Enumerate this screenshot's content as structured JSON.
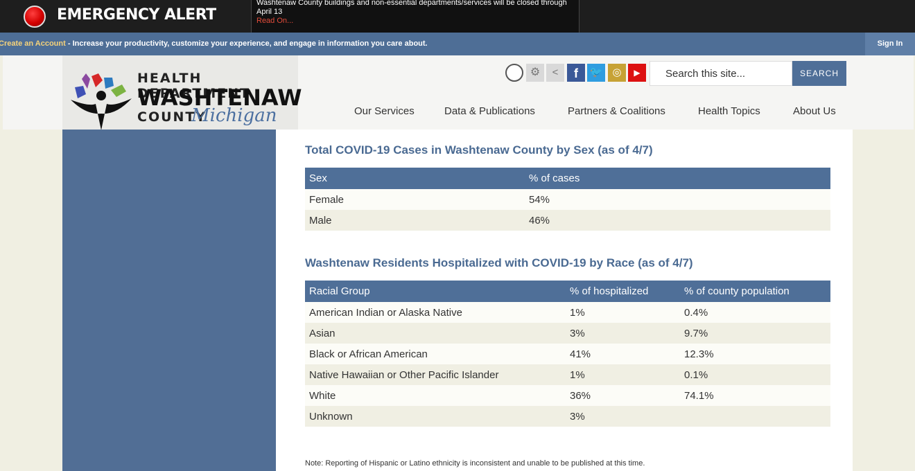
{
  "alert": {
    "title": "EMERGENCY ALERT",
    "message": "Washtenaw County buildings and non-essential departments/services will be closed through April 13",
    "link": "Read On..."
  },
  "account_bar": {
    "link": "Create an Account",
    "text": " - Increase your productivity, customize your experience, and engage in information you care about.",
    "sign_in": "Sign In"
  },
  "logo": {
    "line1": "HEALTH DEPARTMENT",
    "line2": "WASHTENAW",
    "line3": "COUNTY",
    "script": "Michigan"
  },
  "social": {
    "icons": [
      "county-seal-icon",
      "gear-icon",
      "share-icon",
      "facebook-icon",
      "twitter-icon",
      "instagram-icon",
      "youtube-icon"
    ]
  },
  "search": {
    "placeholder": "Search this site...",
    "button": "SEARCH"
  },
  "nav": [
    "Our Services",
    "Data & Publications",
    "Partners & Coalitions",
    "Health Topics",
    "About Us"
  ],
  "sex_section": {
    "title": "Total COVID-19 Cases in Washtenaw County by Sex (as of 4/7)",
    "headers": [
      "Sex",
      "% of cases"
    ],
    "rows": [
      [
        "Female",
        "54%"
      ],
      [
        "Male",
        "46%"
      ]
    ]
  },
  "race_section": {
    "title": "Washtenaw Residents Hospitalized with COVID-19 by Race (as of 4/7)",
    "headers": [
      "Racial Group",
      "% of hospitalized",
      "% of county population"
    ],
    "rows": [
      [
        "American Indian or Alaska Native",
        "1%",
        "0.4%"
      ],
      [
        "Asian",
        "3%",
        "9.7%"
      ],
      [
        "Black or African American",
        "41%",
        "12.3%"
      ],
      [
        "Native Hawaiian or Other Pacific Islander",
        "1%",
        "0.1%"
      ],
      [
        "White",
        "36%",
        "74.1%"
      ],
      [
        "Unknown",
        "3%",
        ""
      ]
    ]
  },
  "note": "Note: Reporting of Hispanic or Latino ethnicity is inconsistent and unable to be published at this time.",
  "colors": {
    "primary": "#4f6f98",
    "alert_red": "#d40000",
    "alert_bg": "#1e1e1e"
  }
}
